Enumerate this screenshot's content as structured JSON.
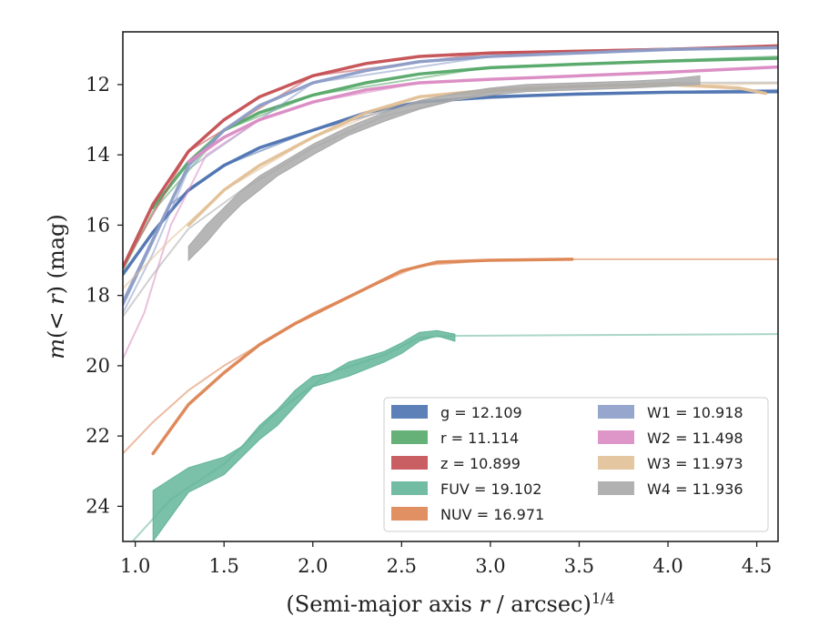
{
  "chart_data": {
    "type": "line",
    "title": "",
    "xlabel": "(Semi-major axis r / arcsec)^1/4",
    "ylabel": "m(< r) (mag)",
    "xlim": [
      0.93,
      4.62
    ],
    "ylim": [
      25.0,
      10.5
    ],
    "y_inverted": true,
    "grid": false,
    "legend_position": "lower-right",
    "xticks": [
      "1.0",
      "1.5",
      "2.0",
      "2.5",
      "3.0",
      "3.5",
      "4.0",
      "4.5"
    ],
    "yticks": [
      "12",
      "14",
      "16",
      "18",
      "20",
      "22",
      "24"
    ],
    "series": [
      {
        "name": "g",
        "legend_label": "g = 12.109",
        "color": "#4c72b0",
        "thick": [
          [
            0.93,
            17.4
          ],
          [
            1.1,
            16.2
          ],
          [
            1.3,
            15.0
          ],
          [
            1.5,
            14.3
          ],
          [
            1.7,
            13.8
          ],
          [
            2.0,
            13.3
          ],
          [
            2.3,
            12.8
          ],
          [
            2.6,
            12.5
          ],
          [
            3.0,
            12.35
          ],
          [
            3.5,
            12.27
          ],
          [
            4.0,
            12.22
          ],
          [
            4.62,
            12.2
          ]
        ],
        "thin": [
          [
            0.93,
            18.3
          ],
          [
            1.2,
            15.4
          ],
          [
            1.5,
            14.3
          ],
          [
            2.0,
            13.3
          ],
          [
            2.6,
            12.5
          ],
          [
            3.5,
            12.25
          ],
          [
            4.62,
            12.15
          ]
        ]
      },
      {
        "name": "r",
        "legend_label": "r = 11.114",
        "color": "#55a868",
        "thick": [
          [
            1.1,
            15.5
          ],
          [
            1.3,
            14.2
          ],
          [
            1.5,
            13.3
          ],
          [
            1.7,
            12.8
          ],
          [
            2.0,
            12.3
          ],
          [
            2.3,
            11.95
          ],
          [
            2.6,
            11.7
          ],
          [
            3.0,
            11.52
          ],
          [
            3.5,
            11.42
          ],
          [
            4.0,
            11.33
          ],
          [
            4.62,
            11.25
          ]
        ],
        "thin": [
          [
            0.93,
            17.3
          ],
          [
            1.1,
            15.6
          ],
          [
            1.5,
            13.3
          ],
          [
            2.0,
            12.3
          ],
          [
            3.0,
            11.5
          ],
          [
            4.62,
            11.2
          ]
        ]
      },
      {
        "name": "z",
        "legend_label": "z = 10.899",
        "color": "#c44e52",
        "thick": [
          [
            0.93,
            17.2
          ],
          [
            1.1,
            15.4
          ],
          [
            1.3,
            13.9
          ],
          [
            1.5,
            13.0
          ],
          [
            1.7,
            12.35
          ],
          [
            2.0,
            11.75
          ],
          [
            2.3,
            11.4
          ],
          [
            2.6,
            11.2
          ],
          [
            3.0,
            11.1
          ],
          [
            3.5,
            11.05
          ],
          [
            4.0,
            11.0
          ],
          [
            4.62,
            10.9
          ]
        ],
        "thin": [
          [
            0.93,
            17.2
          ],
          [
            1.3,
            13.9
          ],
          [
            2.0,
            11.75
          ],
          [
            3.0,
            11.1
          ],
          [
            4.62,
            10.9
          ]
        ]
      },
      {
        "name": "FUV",
        "legend_label": "FUV = 19.102",
        "color": "#64b59a",
        "band": [
          [
            1.1,
            23.55,
            25.0
          ],
          [
            1.3,
            22.9,
            23.6
          ],
          [
            1.5,
            22.6,
            23.1
          ],
          [
            1.6,
            22.3,
            22.6
          ],
          [
            1.7,
            21.7,
            22.1
          ],
          [
            1.8,
            21.25,
            21.7
          ],
          [
            1.9,
            20.7,
            21.15
          ],
          [
            2.0,
            20.3,
            20.6
          ],
          [
            2.1,
            20.2,
            20.45
          ],
          [
            2.2,
            19.9,
            20.3
          ],
          [
            2.3,
            19.75,
            20.1
          ],
          [
            2.4,
            19.6,
            19.9
          ],
          [
            2.5,
            19.35,
            19.65
          ],
          [
            2.6,
            19.05,
            19.3
          ],
          [
            2.7,
            19.0,
            19.15
          ],
          [
            2.8,
            19.1,
            19.3
          ]
        ],
        "thin": [
          [
            0.93,
            25.3
          ],
          [
            1.2,
            23.8
          ],
          [
            1.5,
            22.8
          ],
          [
            1.8,
            21.3
          ],
          [
            2.1,
            20.2
          ],
          [
            2.4,
            19.7
          ],
          [
            2.6,
            19.2
          ],
          [
            2.8,
            19.15
          ],
          [
            3.5,
            19.13
          ],
          [
            4.62,
            19.1
          ]
        ]
      },
      {
        "name": "NUV",
        "legend_label": "NUV = 16.971",
        "color": "#dd8452",
        "thick": [
          [
            1.1,
            22.5
          ],
          [
            1.3,
            21.1
          ],
          [
            1.5,
            20.2
          ],
          [
            1.7,
            19.4
          ],
          [
            1.9,
            18.8
          ],
          [
            2.1,
            18.3
          ],
          [
            2.3,
            17.8
          ],
          [
            2.5,
            17.3
          ],
          [
            2.7,
            17.05
          ],
          [
            3.0,
            17.0
          ],
          [
            3.46,
            16.97
          ]
        ],
        "thin": [
          [
            0.93,
            22.5
          ],
          [
            1.1,
            21.6
          ],
          [
            1.3,
            20.7
          ],
          [
            1.5,
            20.0
          ],
          [
            1.7,
            19.4
          ],
          [
            2.0,
            18.5
          ],
          [
            2.3,
            17.8
          ],
          [
            2.6,
            17.15
          ],
          [
            3.0,
            17.0
          ],
          [
            3.5,
            16.97
          ],
          [
            4.62,
            16.97
          ]
        ]
      },
      {
        "name": "W1",
        "legend_label": "W1 = 10.918",
        "color": "#8c9cc6",
        "thick": [
          [
            0.93,
            18.2
          ],
          [
            1.1,
            16.4
          ],
          [
            1.3,
            14.3
          ],
          [
            1.5,
            13.3
          ],
          [
            1.7,
            12.6
          ],
          [
            2.0,
            11.95
          ],
          [
            2.3,
            11.6
          ],
          [
            2.6,
            11.35
          ],
          [
            3.0,
            11.2
          ],
          [
            3.5,
            11.1
          ],
          [
            4.0,
            11.0
          ],
          [
            4.62,
            10.95
          ]
        ],
        "thin": [
          [
            0.93,
            18.5
          ],
          [
            1.1,
            16.8
          ],
          [
            1.3,
            14.4
          ],
          [
            2.0,
            11.95
          ],
          [
            3.0,
            11.2
          ],
          [
            4.62,
            10.92
          ]
        ]
      },
      {
        "name": "W2",
        "legend_label": "W2 = 11.498",
        "color": "#da8bc3",
        "thick": [
          [
            1.3,
            14.2
          ],
          [
            1.5,
            13.5
          ],
          [
            1.7,
            13.0
          ],
          [
            2.0,
            12.5
          ],
          [
            2.3,
            12.15
          ],
          [
            2.6,
            11.95
          ],
          [
            3.0,
            11.85
          ],
          [
            3.5,
            11.75
          ],
          [
            4.0,
            11.65
          ],
          [
            4.62,
            11.5
          ]
        ],
        "thin": [
          [
            0.93,
            19.8
          ],
          [
            1.05,
            18.5
          ],
          [
            1.2,
            16.0
          ],
          [
            1.4,
            14.0
          ],
          [
            1.7,
            13.0
          ],
          [
            2.0,
            12.5
          ],
          [
            2.6,
            11.95
          ],
          [
            3.5,
            11.75
          ],
          [
            4.62,
            11.5
          ]
        ]
      },
      {
        "name": "W3",
        "legend_label": "W3 = 11.973",
        "color": "#e1c096",
        "thick": [
          [
            1.3,
            16.0
          ],
          [
            1.5,
            15.0
          ],
          [
            1.7,
            14.3
          ],
          [
            2.0,
            13.5
          ],
          [
            2.3,
            12.8
          ],
          [
            2.6,
            12.35
          ],
          [
            3.0,
            12.15
          ],
          [
            3.5,
            12.05
          ],
          [
            4.0,
            12.0
          ],
          [
            4.4,
            12.1
          ],
          [
            4.55,
            12.25
          ]
        ],
        "thin": [
          [
            0.93,
            17.8
          ],
          [
            1.2,
            16.4
          ],
          [
            1.5,
            15.0
          ],
          [
            2.0,
            13.5
          ],
          [
            2.6,
            12.35
          ],
          [
            3.5,
            12.05
          ],
          [
            4.62,
            11.97
          ]
        ]
      },
      {
        "name": "W4",
        "legend_label": "W4 = 11.936",
        "color": "#a9a9a9",
        "band": [
          [
            1.3,
            16.6,
            17.0
          ],
          [
            1.4,
            16.0,
            16.5
          ],
          [
            1.5,
            15.5,
            15.9
          ],
          [
            1.6,
            15.0,
            15.4
          ],
          [
            1.7,
            14.6,
            15.0
          ],
          [
            1.8,
            14.3,
            14.6
          ],
          [
            1.9,
            14.0,
            14.3
          ],
          [
            2.0,
            13.7,
            14.0
          ],
          [
            2.2,
            13.2,
            13.45
          ],
          [
            2.4,
            12.8,
            13.05
          ],
          [
            2.6,
            12.45,
            12.7
          ],
          [
            2.8,
            12.25,
            12.45
          ],
          [
            3.0,
            12.1,
            12.3
          ],
          [
            3.2,
            12.0,
            12.2
          ],
          [
            3.5,
            11.95,
            12.15
          ],
          [
            3.8,
            11.9,
            12.1
          ],
          [
            4.0,
            11.85,
            12.05
          ],
          [
            4.18,
            11.75,
            12.0
          ]
        ],
        "thin": [
          [
            0.93,
            18.6
          ],
          [
            1.1,
            17.4
          ],
          [
            1.3,
            16.1
          ],
          [
            1.6,
            15.0
          ],
          [
            2.0,
            13.8
          ],
          [
            2.4,
            12.9
          ],
          [
            3.0,
            12.2
          ],
          [
            3.5,
            12.05
          ],
          [
            4.0,
            11.95
          ],
          [
            4.62,
            11.94
          ]
        ]
      }
    ]
  }
}
